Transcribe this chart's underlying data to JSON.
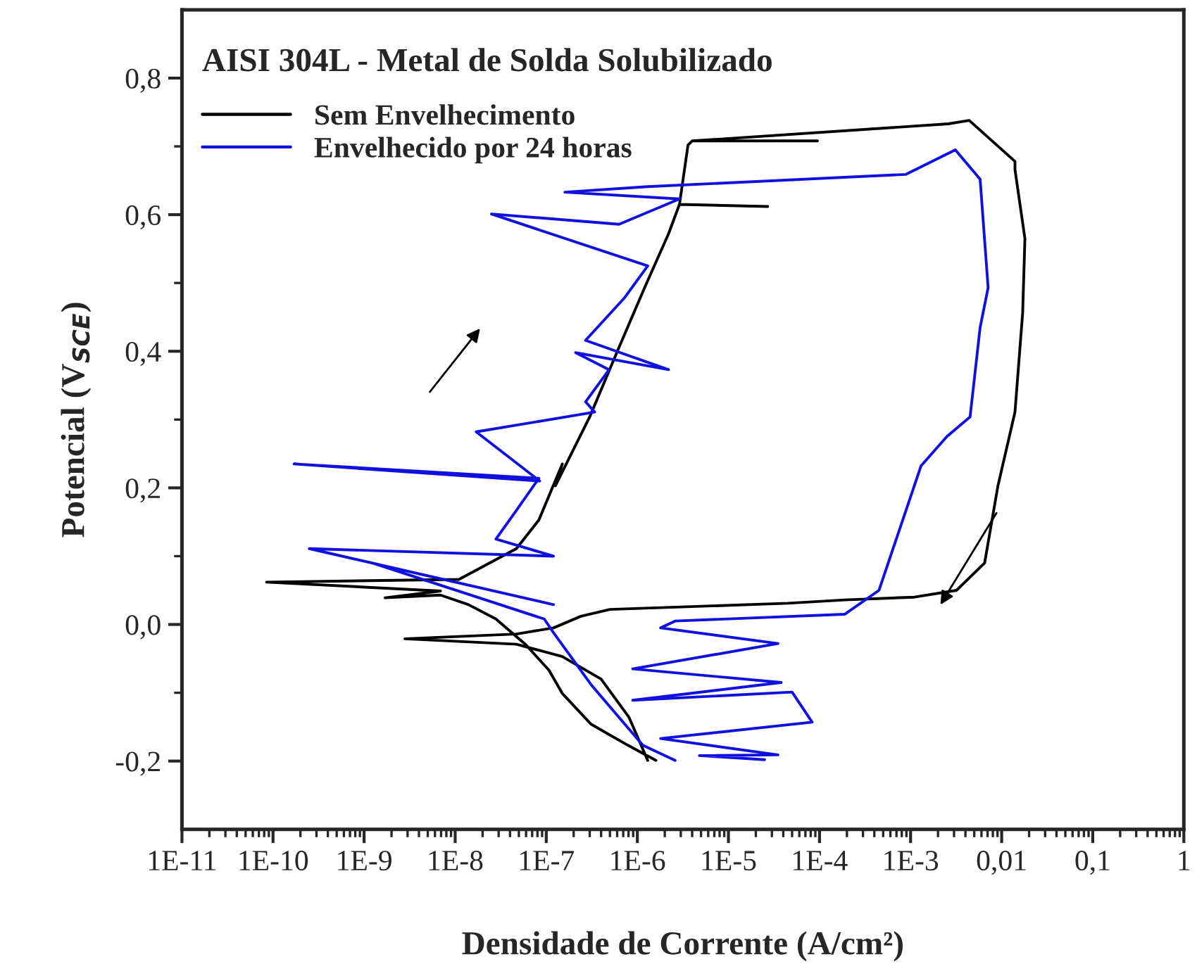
{
  "chart_data": {
    "type": "line",
    "title": "AISI 304L - Metal de Solda Solubilizado",
    "xlabel": "Densidade de Corrente (A/cm²)",
    "ylabel": "Potencial (V$_{SCE}$)",
    "log": "x",
    "xlim": [
      1e-11,
      1
    ],
    "ylim": [
      -0.3,
      0.9
    ],
    "xticks": [
      {
        "value": 1e-11,
        "label": "1E-11"
      },
      {
        "value": 1e-10,
        "label": "1E-10"
      },
      {
        "value": 1e-09,
        "label": "1E-9"
      },
      {
        "value": 1e-08,
        "label": "1E-8"
      },
      {
        "value": 1e-07,
        "label": "1E-7"
      },
      {
        "value": 1e-06,
        "label": "1E-6"
      },
      {
        "value": 1e-05,
        "label": "1E-5"
      },
      {
        "value": 0.0001,
        "label": "1E-4"
      },
      {
        "value": 0.001,
        "label": "1E-3"
      },
      {
        "value": 0.01,
        "label": "0,01"
      },
      {
        "value": 0.1,
        "label": "0,1"
      },
      {
        "value": 1,
        "label": "1"
      }
    ],
    "yticks": [
      {
        "value": -0.2,
        "label": "-0,2"
      },
      {
        "value": 0.0,
        "label": "0,0"
      },
      {
        "value": 0.2,
        "label": "0,2"
      },
      {
        "value": 0.4,
        "label": "0,4"
      },
      {
        "value": 0.6,
        "label": "0,6"
      },
      {
        "value": 0.8,
        "label": "0,8"
      }
    ],
    "grid": false,
    "legend": "top left",
    "marker": "none",
    "line_style": "solid",
    "series": [
      {
        "name": "Sem Envelhecimento",
        "color": "#000000",
        "x": [
          1.6e-06,
          7.9e-07,
          3.1e-07,
          1.5e-07,
          1.07e-07,
          5.9e-08,
          2.8e-08,
          1.4e-08,
          6.9e-09,
          1.7e-09,
          6.9e-09,
          8.5e-11,
          1.1e-08,
          4.7e-08,
          8.3e-08,
          1.5e-07,
          1.26e-07,
          3e-07,
          6.3e-07,
          1.2e-06,
          2.2e-06,
          2.9e-06,
          2.7e-05,
          2.9e-06,
          3.6e-06,
          4e-06,
          9.5e-05,
          4e-06,
          0.0026,
          0.0044,
          0.014,
          0.014,
          0.018,
          0.017,
          0.014,
          0.0091,
          0.0065,
          0.0032,
          0.0011,
          0.00019,
          4.5e-05,
          5e-07,
          2.4e-07,
          1.2e-07,
          4.7e-08,
          2.8e-09,
          4.7e-08,
          1.5e-07,
          4e-07,
          8.1e-07,
          1.3e-06
        ],
        "values": [
          -0.199,
          -0.177,
          -0.146,
          -0.101,
          -0.067,
          -0.029,
          0.008,
          0.029,
          0.043,
          0.039,
          0.049,
          0.062,
          0.066,
          0.111,
          0.153,
          0.235,
          0.203,
          0.304,
          0.406,
          0.493,
          0.572,
          0.615,
          0.612,
          0.615,
          0.702,
          0.708,
          0.708,
          0.708,
          0.733,
          0.738,
          0.678,
          0.666,
          0.565,
          0.456,
          0.311,
          0.203,
          0.09,
          0.05,
          0.04,
          0.036,
          0.031,
          0.022,
          0.012,
          -0.005,
          -0.014,
          -0.021,
          -0.029,
          -0.047,
          -0.08,
          -0.136,
          -0.199
        ]
      },
      {
        "name": "Envelhecido por 24 horas",
        "color": "#1010e0",
        "x": [
          2.6e-06,
          1.15e-06,
          3.1e-07,
          1.2e-07,
          9.5e-08,
          1.3e-09,
          1.2e-07,
          2.5e-10,
          1.2e-07,
          2.8e-08,
          4.7e-08,
          8.3e-08,
          1.7e-10,
          8.5e-08,
          1.7e-08,
          3.4e-07,
          2.7e-07,
          4.9e-07,
          2.1e-07,
          2.2e-06,
          2.7e-07,
          7.2e-07,
          1.3e-06,
          2.5e-08,
          6.3e-07,
          2.9e-06,
          1.6e-07,
          1.3e-06,
          0.00089,
          0.0031,
          0.0058,
          0.0071,
          0.0058,
          0.0045,
          0.0025,
          0.0013,
          0.00045,
          0.00019,
          2.6e-06,
          1.8e-06,
          3.5e-05,
          8.9e-07,
          3.8e-05,
          8.9e-07,
          5e-05,
          8.3e-05,
          1.8e-06,
          3.5e-05,
          4.8e-06,
          2.5e-05
        ],
        "values": [
          -0.199,
          -0.177,
          -0.088,
          -0.012,
          0.008,
          0.089,
          0.029,
          0.111,
          0.1,
          0.125,
          0.167,
          0.214,
          0.235,
          0.21,
          0.282,
          0.311,
          0.326,
          0.373,
          0.398,
          0.373,
          0.416,
          0.478,
          0.525,
          0.601,
          0.586,
          0.623,
          0.633,
          0.641,
          0.659,
          0.695,
          0.652,
          0.493,
          0.435,
          0.304,
          0.275,
          0.232,
          0.05,
          0.015,
          0.005,
          -0.005,
          -0.028,
          -0.065,
          -0.085,
          -0.111,
          -0.099,
          -0.143,
          -0.167,
          -0.191,
          -0.192,
          -0.198
        ]
      }
    ]
  }
}
